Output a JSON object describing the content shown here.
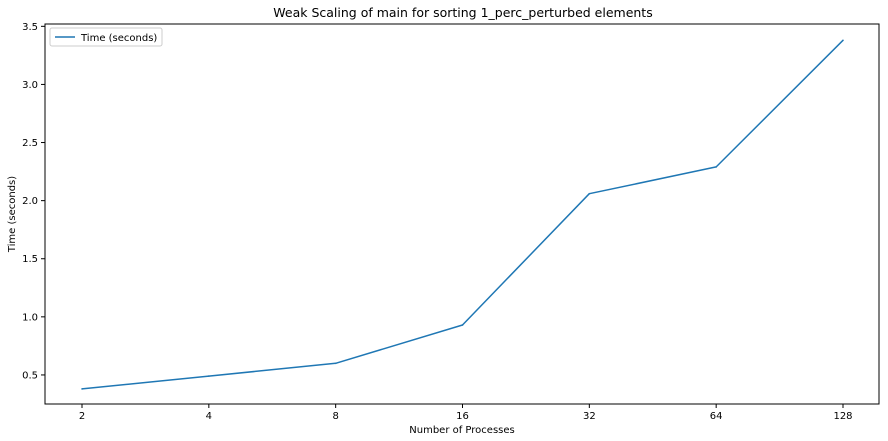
{
  "chart_data": {
    "type": "line",
    "title": "Weak Scaling of main for sorting 1_perc_perturbed elements",
    "xlabel": "Number of Processes",
    "ylabel": "Time (seconds)",
    "x_scale": "log2",
    "x": [
      2,
      4,
      8,
      16,
      32,
      64,
      128
    ],
    "x_tick_labels": [
      "2",
      "4",
      "8",
      "16",
      "32",
      "64",
      "128"
    ],
    "y_ticks": [
      0.5,
      1.0,
      1.5,
      2.0,
      2.5,
      3.0,
      3.5
    ],
    "y_tick_labels": [
      "0.5",
      "1.0",
      "1.5",
      "2.0",
      "2.5",
      "3.0",
      "3.5"
    ],
    "ylim": [
      0.25,
      3.52
    ],
    "grid": false,
    "legend_position": "top-left",
    "series": [
      {
        "name": "Time (seconds)",
        "color": "#1f77b4",
        "values": [
          0.38,
          0.49,
          0.6,
          0.93,
          2.06,
          2.29,
          3.38
        ]
      }
    ]
  }
}
